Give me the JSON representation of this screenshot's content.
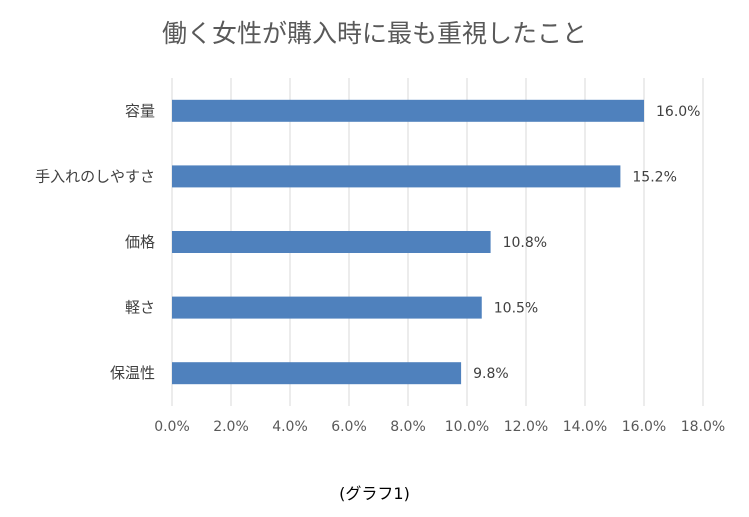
{
  "chart_data": {
    "type": "bar",
    "orientation": "horizontal",
    "title": "働く女性が購入時に最も重視したこと",
    "categories": [
      "容量",
      "手入れのしやすさ",
      "価格",
      "軽さ",
      "保温性"
    ],
    "values": [
      16.0,
      15.2,
      10.8,
      10.5,
      9.8
    ],
    "value_labels": [
      "16.0%",
      "15.2%",
      "10.8%",
      "10.5%",
      "9.8%"
    ],
    "x_ticks": [
      "0.0%",
      "2.0%",
      "4.0%",
      "6.0%",
      "8.0%",
      "10.0%",
      "12.0%",
      "14.0%",
      "16.0%",
      "18.0%"
    ],
    "xlim": [
      0,
      18
    ],
    "grid": true,
    "bar_color": "#4F81BD",
    "grid_color": "#D9D9D9"
  },
  "caption": "(グラフ1)"
}
